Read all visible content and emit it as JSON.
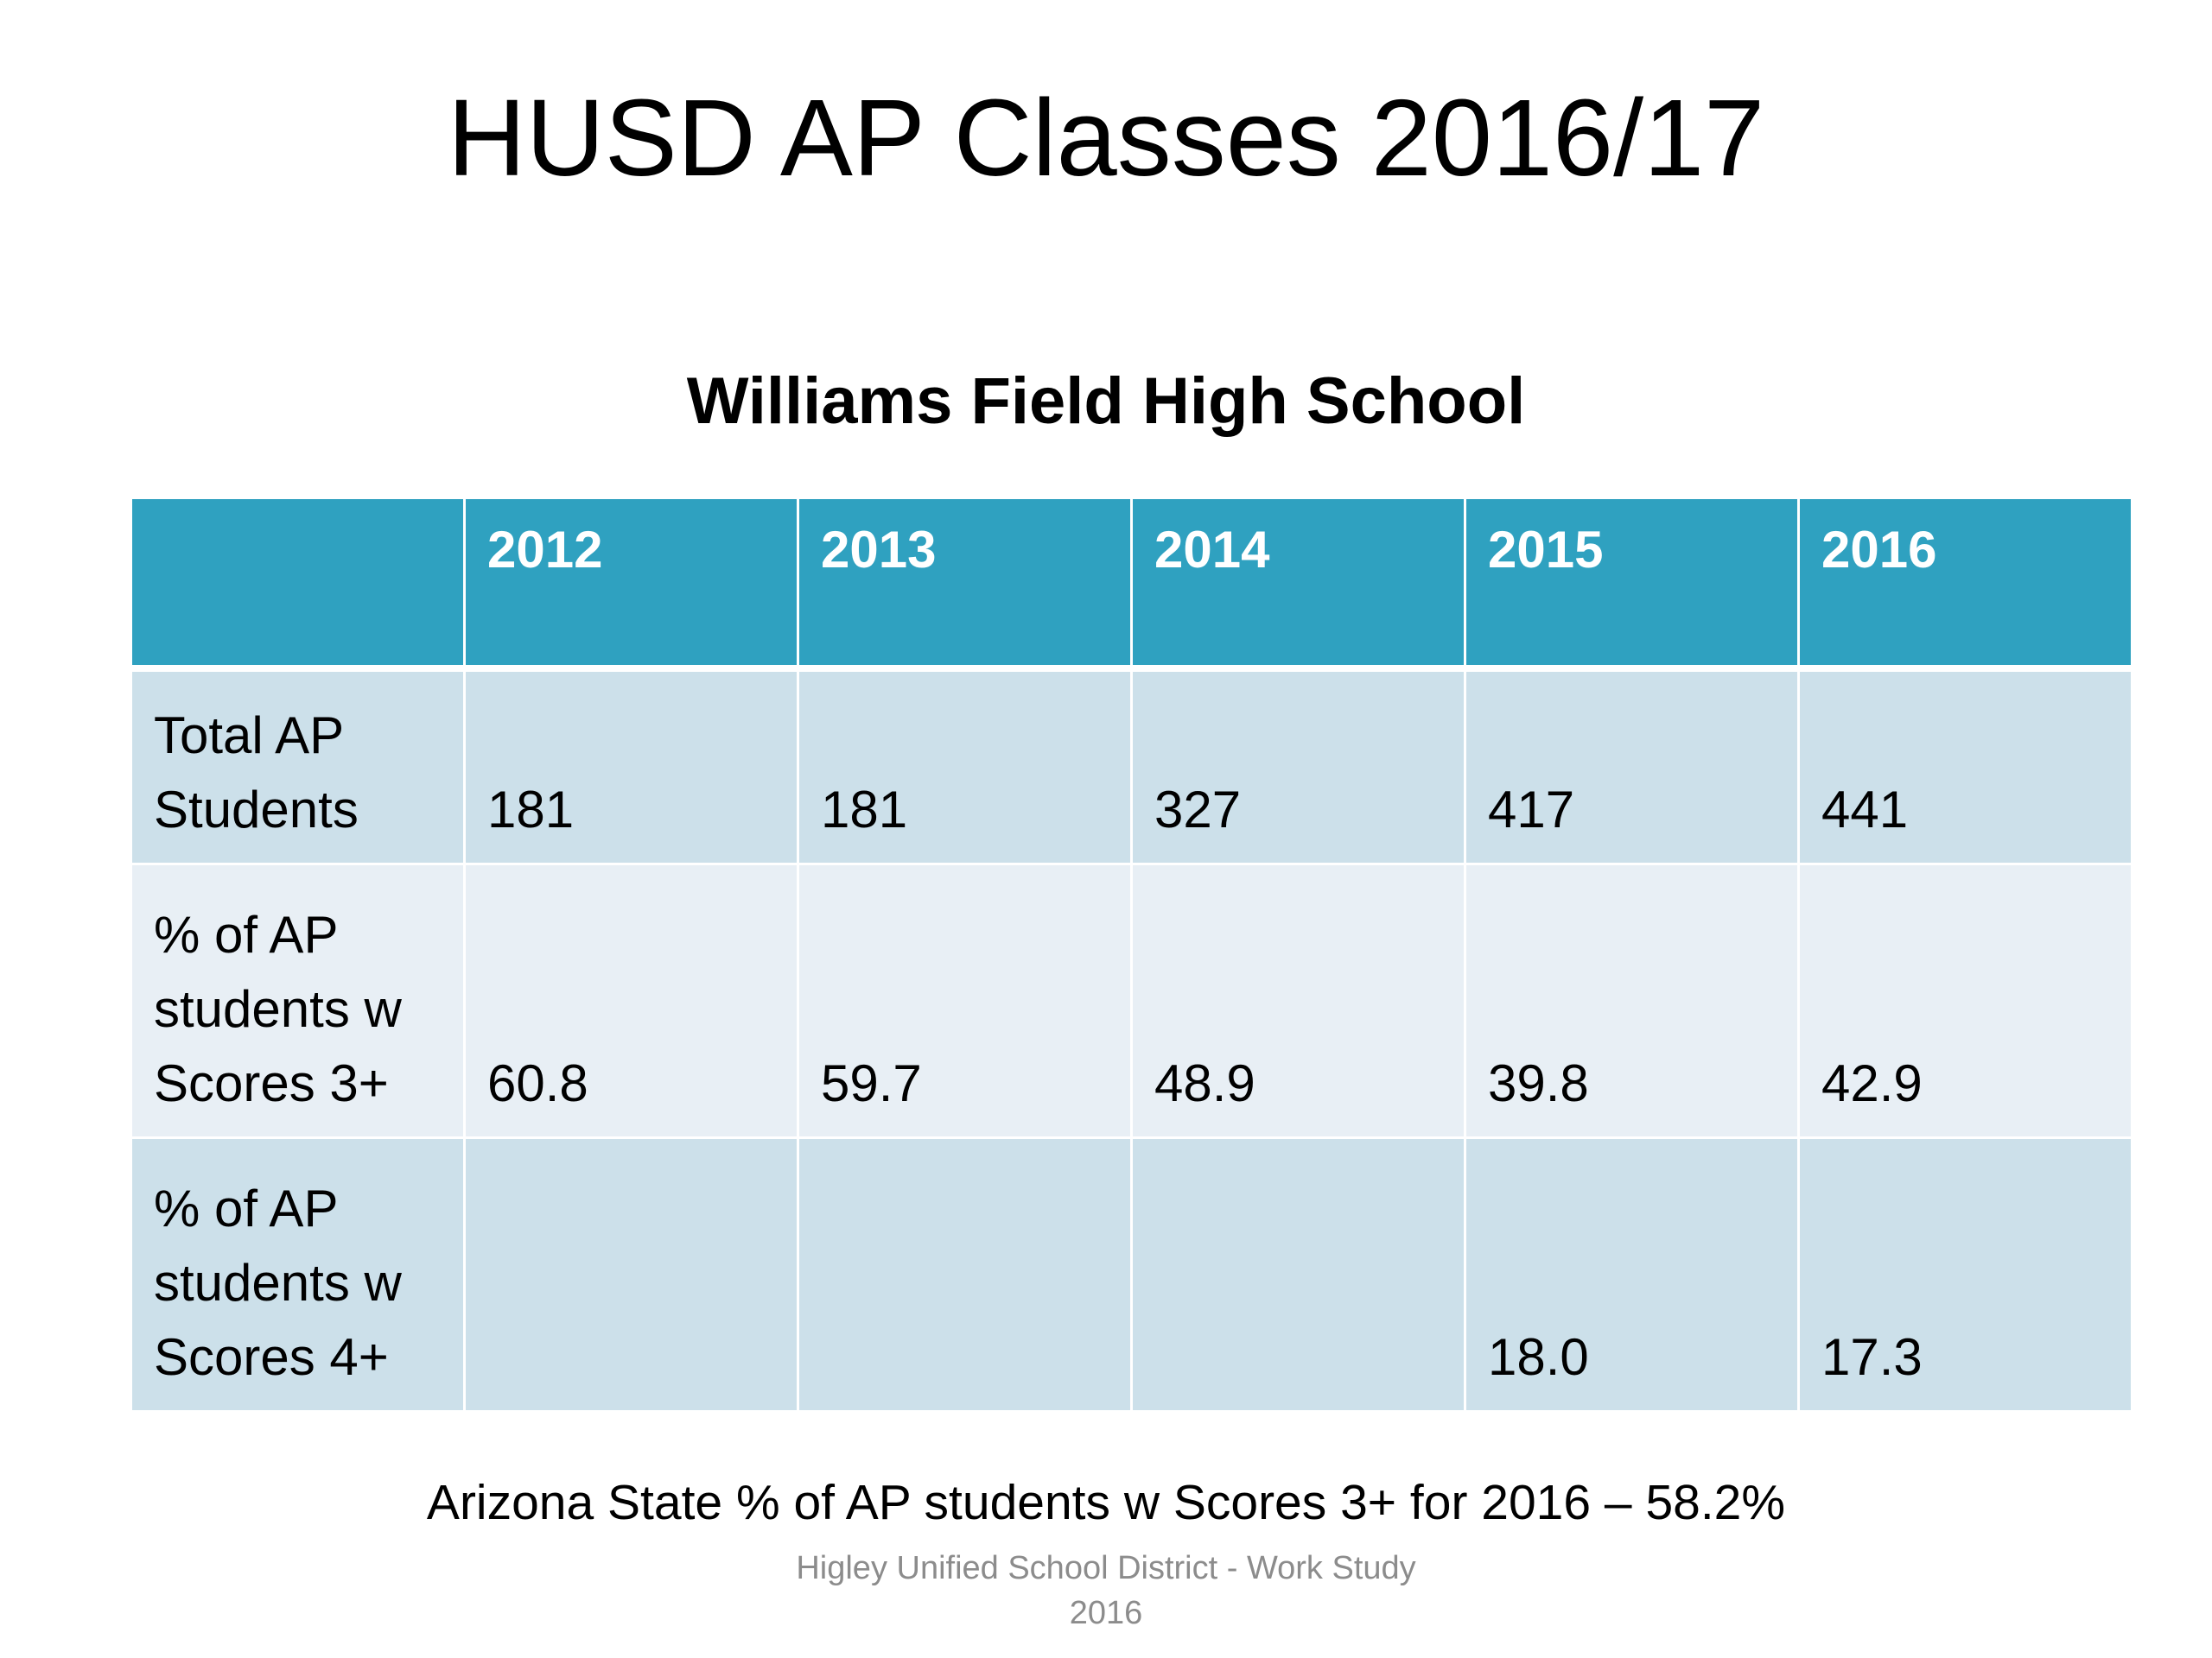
{
  "slide": {
    "title": "HUSD AP Classes 2016/17",
    "school": "Williams Field High School",
    "state_note": "Arizona State % of AP students w Scores 3+ for 2016 – 58.2%",
    "footer_line1": "Higley Unified School District  - Work Study",
    "footer_line2": "2016"
  },
  "table": {
    "corner": "",
    "years": [
      "2012",
      "2013",
      "2014",
      "2015",
      "2016"
    ],
    "rows": [
      {
        "label": "Total AP Students",
        "values": [
          "181",
          "181",
          "327",
          "417",
          "441"
        ]
      },
      {
        "label": "% of AP students w Scores 3+",
        "values": [
          "60.8",
          "59.7",
          "48.9",
          "39.8",
          "42.9"
        ]
      },
      {
        "label": "% of AP students w Scores 4+",
        "values": [
          "",
          "",
          "",
          "18.0",
          "17.3"
        ]
      }
    ]
  },
  "colors": {
    "header_bg": "#2fa1c0",
    "row_dark": "#cce0ea",
    "row_light": "#e8eff5",
    "footer_text": "#8c8c8c"
  }
}
